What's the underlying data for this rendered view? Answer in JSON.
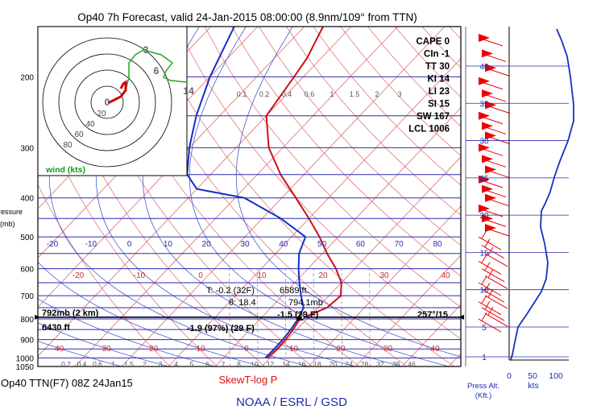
{
  "header": {
    "title": "Op40 7h Forecast, valid 24-Jan-2015 08:00:00 (8.9nm/109° from TTN)"
  },
  "footer": {
    "run_label": "Op40 TTN(F7) 08Z 24Jan15",
    "chart_name": "SkewT-log P",
    "credit": "NOAA / ESRL / GSD",
    "press_alt_label": "Press Alt.",
    "press_alt_unit": "(Kft.)",
    "wind_unit": "kts"
  },
  "axes": {
    "ylabel": "Pressure",
    "yunit": "(mb)",
    "pressure_ticks": [
      "200",
      "300",
      "400",
      "500",
      "600",
      "700",
      "800",
      "900",
      "1000",
      "1050"
    ],
    "temp_labels_top": [
      "-20",
      "-10",
      "0",
      "10",
      "20",
      "30",
      "40",
      "50",
      "60",
      "70",
      "80"
    ],
    "temp_labels_mid": [
      "-20",
      "-10",
      "0",
      "10",
      "20",
      "30",
      "40"
    ],
    "temp_labels_bottom": [
      "-40",
      "-30",
      "-20",
      "-10",
      "0",
      "10",
      "20",
      "30",
      "40"
    ],
    "mixing_ratio_top": [
      "0.1",
      "0.2",
      "0.4",
      "0.6",
      "1",
      "1.5",
      "2",
      "3"
    ],
    "mixing_ratio_bottom": [
      "0.2",
      "0.4",
      "0.6",
      "1",
      "1.5",
      "2",
      "3",
      "4",
      "5",
      "6",
      "7",
      "8",
      "10",
      "12",
      "14",
      "16",
      "18",
      "20",
      "24",
      "28",
      "32",
      "38",
      "46"
    ],
    "alt_ticks": [
      "1",
      "5",
      "10",
      "15",
      "20",
      "25",
      "30",
      "35",
      "40"
    ],
    "wind_ticks": [
      "0",
      "50",
      "100"
    ]
  },
  "indices": [
    {
      "label": "CAPE",
      "value": "0"
    },
    {
      "label": "CIn",
      "value": "-1"
    },
    {
      "label": "TT",
      "value": "30"
    },
    {
      "label": "KI",
      "value": "14"
    },
    {
      "label": "LI",
      "value": "23"
    },
    {
      "label": "SI",
      "value": "15"
    },
    {
      "label": "SW",
      "value": "167"
    },
    {
      "label": "LCL",
      "value": "1006"
    }
  ],
  "hodograph": {
    "legend": "wind (kts)",
    "ring_labels": [
      "20",
      "40",
      "60",
      "80"
    ],
    "level_marks": [
      "0",
      "3",
      "6",
      "14"
    ]
  },
  "readout": {
    "pressure_height": "792mb (2 km)",
    "height_ft": "6430 ft",
    "temperature": "-1.5 (29 F)",
    "dewpoint": "-1.9 (97%) (29 F)",
    "wind": "257°/15",
    "parcel_t": "T: -0.2 (32F)",
    "parcel_theta": "θ: 18.4",
    "parcel_height": "6589 ft.",
    "parcel_pressure": "794.1mb"
  },
  "colors": {
    "isotherm": "#e07a7a",
    "dry_adiabat": "#e07a7a",
    "moist_adiabat": "#4a5ad0",
    "isobar": "#2a2ab0",
    "temperature": "#d01010",
    "dewpoint": "#1530c0",
    "wind_barb": "#ee0000",
    "hodograph": "#22aa22",
    "wind_profile": "#1530c0"
  },
  "chart_data": {
    "type": "line",
    "title": "Op40 7h Forecast, valid 24-Jan-2015 08:00:00 (8.9nm/109° from TTN)",
    "xlabel": "",
    "ylabel": "Pressure (mb)",
    "y_scale": "log",
    "ylim": [
      1050,
      150
    ],
    "series": [
      {
        "values_p": [
          1000,
          950,
          900,
          850,
          800,
          750,
          700,
          650,
          600,
          550,
          500,
          450,
          400,
          350,
          300,
          250,
          200,
          180,
          150
        ],
        "values_t": [
          -0.5,
          -0.3,
          -0.4,
          -0.8,
          -1.5,
          2.0,
          2.5,
          0.0,
          -4.0,
          -9.0,
          -14.0,
          -20.0,
          -27.0,
          -35.0,
          -43.0,
          -50.0,
          -52.0,
          -53.0,
          -56.0
        ]
      },
      {
        "values_p": [
          1000,
          950,
          900,
          850,
          800,
          750,
          700,
          650,
          600,
          550,
          500,
          450,
          400,
          380,
          350,
          300,
          250,
          200,
          150
        ],
        "values_t": [
          -1.0,
          -0.9,
          -1.0,
          -1.3,
          -1.9,
          -3.0,
          -6.0,
          -9.0,
          -12.0,
          -15.0,
          -17.0,
          -26.0,
          -38.0,
          -50.0,
          -55.0,
          -60.0,
          -65.0,
          -70.0,
          -75.0
        ]
      }
    ]
  }
}
